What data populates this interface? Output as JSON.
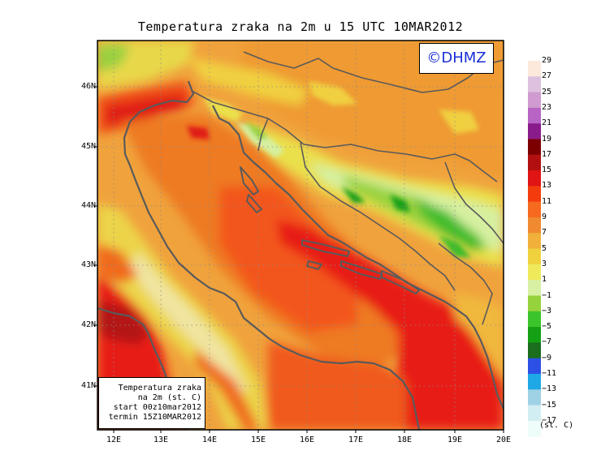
{
  "title": "Temperatura zraka na 2m u 15 UTC 10MAR2012",
  "logo": "©DHMZ",
  "info_box": {
    "line1": "Temperatura zraka",
    "line2": "na 2m (st. C)",
    "line3": "start 00z10mar2012",
    "line4": "termin 15Z10MAR2012"
  },
  "lat_labels": [
    "46N",
    "45N",
    "44N",
    "43N",
    "42N",
    "41N"
  ],
  "lon_labels": [
    "12E",
    "13E",
    "14E",
    "15E",
    "16E",
    "17E",
    "18E",
    "19E",
    "20E"
  ],
  "legend": {
    "unit": "(st. C)",
    "labels": [
      "29",
      "27",
      "25",
      "23",
      "21",
      "19",
      "17",
      "15",
      "13",
      "11",
      "9",
      "7",
      "5",
      "3",
      "1",
      "−1",
      "−3",
      "−5",
      "−7",
      "−9",
      "−11",
      "−13",
      "−15",
      "−17"
    ],
    "colors": [
      "#fde8dc",
      "#ddc1de",
      "#cf9bd0",
      "#b764c5",
      "#8a1b8a",
      "#7d0000",
      "#b21010",
      "#e01414",
      "#f23c0e",
      "#f56a1e",
      "#ef8a30",
      "#f0b03a",
      "#f0d23e",
      "#eeea5c",
      "#d8f0a4",
      "#96d23c",
      "#3cc42c",
      "#14a014",
      "#1a6e1e",
      "#2c50e6",
      "#1ea8e6",
      "#a0d2e6",
      "#d2eef2",
      "#eefcfa"
    ]
  },
  "colors": {
    "coastline": "#5a5a5a",
    "logo_text": "#1a2fd6"
  }
}
